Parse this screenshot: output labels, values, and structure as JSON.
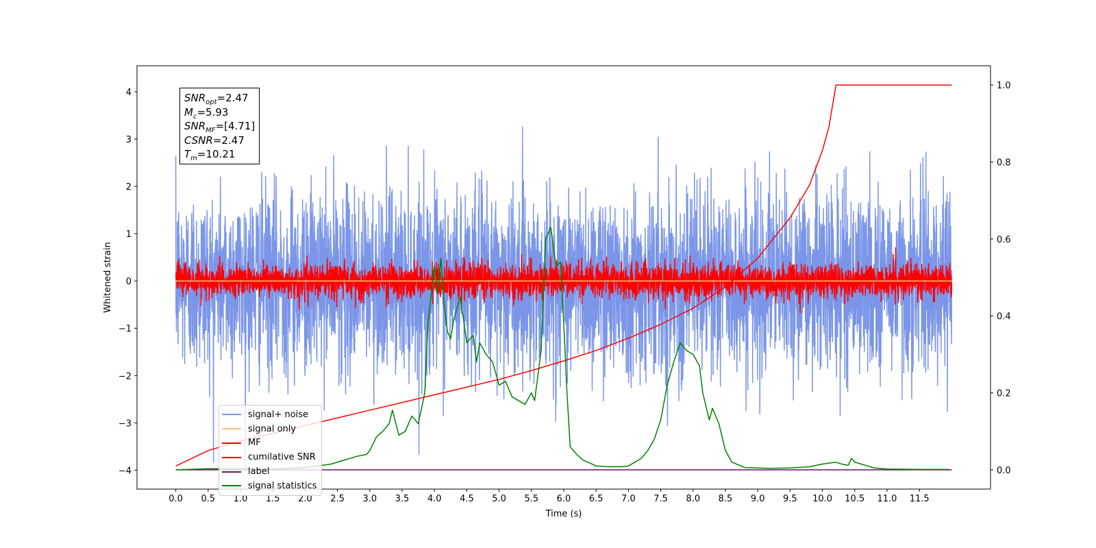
{
  "chart_data": {
    "type": "line",
    "xlabel": "Time (s)",
    "ylabel": "Whitened strain",
    "xlim": [
      -0.6,
      12.6
    ],
    "ylim": [
      -4.4,
      4.55
    ],
    "y2lim": [
      -0.05,
      1.05
    ],
    "x_ticks": [
      "0.0",
      "0.5",
      "1.0",
      "1.5",
      "2.0",
      "2.5",
      "3.0",
      "3.5",
      "4.0",
      "4.5",
      "5.0",
      "5.5",
      "6.0",
      "6.5",
      "7.0",
      "7.5",
      "8.0",
      "8.5",
      "9.0",
      "9.5",
      "10.0",
      "10.5",
      "11.0",
      "11.5"
    ],
    "y_ticks": [
      "4",
      "3",
      "2",
      "1",
      "0",
      "−1",
      "−2",
      "−3",
      "−4"
    ],
    "y2_ticks": [
      "1.0",
      "0.8",
      "0.6",
      "0.4",
      "0.2",
      "0.0"
    ],
    "grid": false,
    "legend_placement": "lower-left",
    "annotation": {
      "snr_opt": "=2.47",
      "mc": "=5.93",
      "snr_mf": "=[4.71]",
      "csnr": "=2.47",
      "tm": "=10.21"
    },
    "series": [
      {
        "name": "signal+ noise",
        "color": "#7b96e8",
        "axis": "left",
        "noise_std": 0.95,
        "x_range": [
          0,
          12
        ]
      },
      {
        "name": "signal only",
        "color": "#f5c56c",
        "axis": "left",
        "x": [
          0,
          12
        ],
        "y": [
          0,
          0
        ]
      },
      {
        "name": "MF",
        "color": "#ff0000",
        "axis": "left",
        "noise_std": 0.18,
        "x_range": [
          0,
          12
        ]
      },
      {
        "name": "cumilative SNR",
        "color": "#ff0000",
        "axis": "right",
        "x": [
          0,
          0.5,
          1.0,
          1.5,
          2.0,
          2.5,
          3.0,
          3.5,
          4.0,
          4.5,
          5.0,
          5.5,
          6.0,
          6.5,
          7.0,
          7.5,
          8.0,
          8.5,
          9.0,
          9.5,
          9.8,
          10.0,
          10.1,
          10.21,
          12.0
        ],
        "y": [
          0.01,
          0.05,
          0.075,
          0.095,
          0.115,
          0.135,
          0.155,
          0.175,
          0.195,
          0.215,
          0.235,
          0.258,
          0.283,
          0.31,
          0.342,
          0.378,
          0.42,
          0.475,
          0.55,
          0.655,
          0.74,
          0.83,
          0.89,
          1.0,
          1.0
        ]
      },
      {
        "name": "label",
        "color": "#6a0f6a",
        "axis": "right",
        "x": [
          0,
          12
        ],
        "y": [
          0,
          0
        ]
      },
      {
        "name": "signal statistics",
        "color": "#008000",
        "axis": "right",
        "x": [
          0,
          0.5,
          1.0,
          1.5,
          2.0,
          2.2,
          2.4,
          2.6,
          2.8,
          2.95,
          3.0,
          3.1,
          3.2,
          3.3,
          3.35,
          3.45,
          3.55,
          3.65,
          3.75,
          3.85,
          3.9,
          4.0,
          4.05,
          4.1,
          4.15,
          4.2,
          4.25,
          4.3,
          4.4,
          4.5,
          4.6,
          4.65,
          4.7,
          4.8,
          4.9,
          5.0,
          5.1,
          5.2,
          5.3,
          5.4,
          5.5,
          5.55,
          5.65,
          5.72,
          5.8,
          5.88,
          5.95,
          6.0,
          6.05,
          6.1,
          6.2,
          6.3,
          6.4,
          6.5,
          6.7,
          6.9,
          7.0,
          7.1,
          7.2,
          7.3,
          7.4,
          7.5,
          7.6,
          7.7,
          7.8,
          7.9,
          8.0,
          8.1,
          8.15,
          8.25,
          8.3,
          8.4,
          8.5,
          8.6,
          8.8,
          9.0,
          9.2,
          9.5,
          9.8,
          10.0,
          10.2,
          10.3,
          10.4,
          10.45,
          10.5,
          10.6,
          10.7,
          10.8,
          11.0,
          11.5,
          11.95
        ],
        "y": [
          0.0,
          0.003,
          0.003,
          0.002,
          0.006,
          0.01,
          0.015,
          0.025,
          0.035,
          0.04,
          0.05,
          0.085,
          0.1,
          0.12,
          0.155,
          0.09,
          0.1,
          0.14,
          0.12,
          0.2,
          0.38,
          0.53,
          0.46,
          0.55,
          0.43,
          0.36,
          0.34,
          0.39,
          0.45,
          0.33,
          0.35,
          0.28,
          0.33,
          0.3,
          0.28,
          0.22,
          0.23,
          0.19,
          0.18,
          0.17,
          0.2,
          0.18,
          0.31,
          0.6,
          0.63,
          0.53,
          0.54,
          0.38,
          0.2,
          0.06,
          0.04,
          0.025,
          0.018,
          0.01,
          0.008,
          0.008,
          0.01,
          0.02,
          0.03,
          0.05,
          0.08,
          0.13,
          0.22,
          0.28,
          0.33,
          0.31,
          0.3,
          0.27,
          0.2,
          0.13,
          0.16,
          0.12,
          0.05,
          0.02,
          0.006,
          0.005,
          0.004,
          0.005,
          0.008,
          0.015,
          0.02,
          0.015,
          0.012,
          0.03,
          0.02,
          0.015,
          0.01,
          0.005,
          0.002,
          0.001,
          0.001
        ]
      }
    ]
  }
}
